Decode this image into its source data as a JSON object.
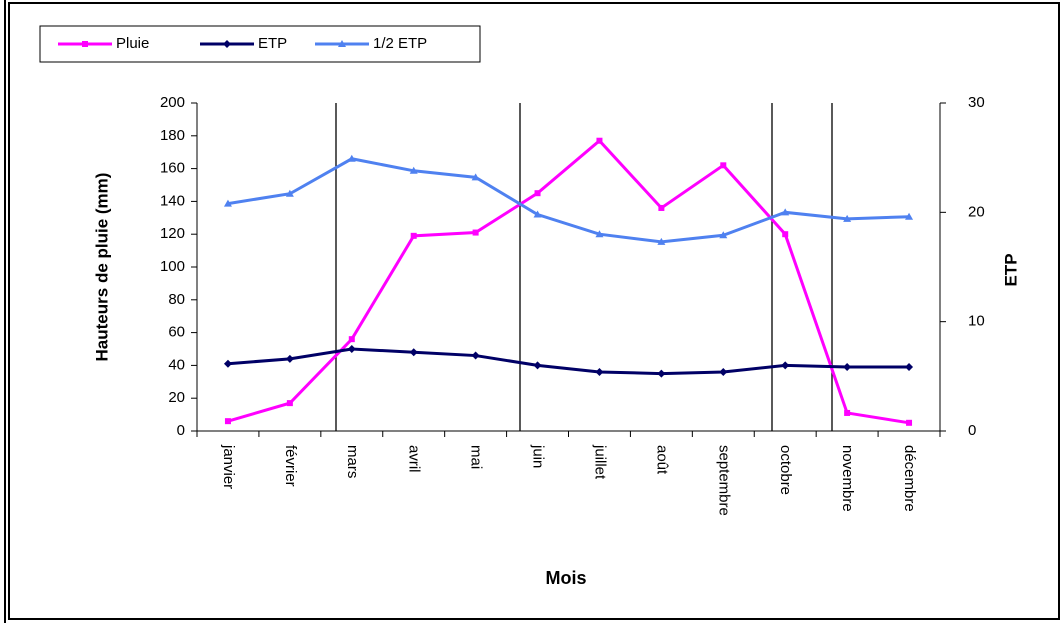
{
  "chart_data": {
    "type": "line",
    "x_label": "Mois",
    "y_label": "Hauteurs de pluie (mm)",
    "y2_label": "ETP",
    "categories": [
      "janvier",
      "février",
      "mars",
      "avril",
      "mai",
      "juin",
      "juillet",
      "août",
      "septembre",
      "octobre",
      "novembre",
      "décembre"
    ],
    "series": [
      {
        "name": "Pluie",
        "color": "#ff00ff",
        "marker": "square",
        "values": [
          6,
          17,
          56,
          119,
          121,
          145,
          177,
          136,
          162,
          120,
          11,
          5
        ]
      },
      {
        "name": "ETP",
        "color": "#000066",
        "marker": "diamond",
        "values": [
          41,
          44,
          50,
          48,
          46,
          40,
          36,
          35,
          36,
          40,
          39,
          39
        ]
      },
      {
        "name": "1/2 ETP",
        "color": "#4f81f0",
        "marker": "triangle",
        "axis": "y2",
        "values": [
          20.8,
          21.7,
          24.9,
          23.8,
          23.2,
          19.8,
          18.0,
          17.3,
          17.9,
          20.0,
          19.4,
          19.6
        ]
      }
    ],
    "ylim": [
      0,
      200
    ],
    "yticks": [
      0,
      20,
      40,
      60,
      80,
      100,
      120,
      140,
      160,
      180,
      200
    ],
    "y2lim": [
      0,
      30
    ],
    "y2ticks": [
      0,
      10,
      20,
      30
    ],
    "legend": "top-left"
  }
}
